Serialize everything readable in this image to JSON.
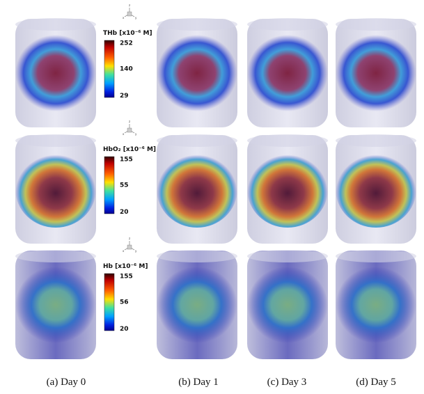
{
  "colorbars": [
    {
      "title": "THb [x10⁻⁶ M]",
      "ticks": [
        "252",
        "140",
        "29"
      ]
    },
    {
      "title": "HbO₂ [x10⁻⁶ M]",
      "ticks": [
        "155",
        "55",
        "20"
      ]
    },
    {
      "title": "Hb [x10⁻⁶ M]",
      "ticks": [
        "155",
        "56",
        "20"
      ]
    }
  ],
  "axes": [
    "z",
    "x",
    "y"
  ],
  "captions": [
    "(a) Day 0",
    "(b) Day 1",
    "(c) Day 3",
    "(d) Day 5"
  ]
}
